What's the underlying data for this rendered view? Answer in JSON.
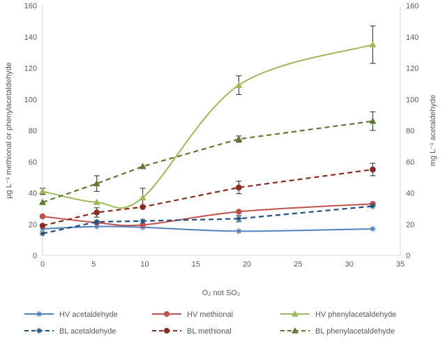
{
  "chart_data": {
    "type": "line",
    "xlabel": "O₂ not SO₂",
    "ylabel_left": "µg L⁻¹ methional or phenylacetaldehyde",
    "ylabel_right": "mg L⁻¹ acetaldehyde",
    "xlim": [
      0,
      35
    ],
    "ylim_left": [
      0,
      160
    ],
    "ylim_right": [
      0,
      160
    ],
    "x_ticks": [
      "0",
      "5",
      "10",
      "15",
      "20",
      "25",
      "30",
      "35"
    ],
    "y_ticks_left": [
      "0",
      "20",
      "40",
      "60",
      "80",
      "100",
      "120",
      "140",
      "160"
    ],
    "y_ticks_right": [
      "0",
      "20",
      "40",
      "60",
      "80",
      "100",
      "120",
      "140",
      "160"
    ],
    "grid": false,
    "legend_position": "bottom",
    "series": [
      {
        "name": "HV acetaldehyde",
        "color": "#4F81BD",
        "dash": false,
        "marker": "asterisk",
        "x": [
          0,
          5.3,
          9.8,
          19.2,
          32.3
        ],
        "y": [
          17,
          18.5,
          18,
          15.5,
          17
        ],
        "err": [
          0,
          0,
          0,
          0,
          0
        ]
      },
      {
        "name": "HV methional",
        "color": "#C0504D",
        "dash": false,
        "marker": "circle",
        "x": [
          0,
          5.3,
          9.8,
          19.2,
          32.3
        ],
        "y": [
          25,
          21,
          19.5,
          28,
          33
        ],
        "err": [
          0,
          0,
          0,
          0,
          0
        ]
      },
      {
        "name": "HV phenylacetaldehyde",
        "color": "#9BBB59",
        "dash": false,
        "marker": "triangle",
        "x": [
          0,
          5.3,
          9.8,
          19.2,
          32.3
        ],
        "y": [
          41,
          34,
          37,
          109,
          135
        ],
        "err": [
          2,
          0,
          6,
          6,
          12
        ]
      },
      {
        "name": "BL acetaldehyde",
        "color": "#1F4E79",
        "dash": true,
        "marker": "asterisk",
        "x": [
          0,
          5.3,
          9.8,
          19.2,
          32.3
        ],
        "y": [
          14,
          21.5,
          22,
          23.5,
          31.5
        ],
        "err": [
          0,
          0,
          0,
          2,
          0
        ]
      },
      {
        "name": "BL methional",
        "color": "#8B2A22",
        "dash": true,
        "marker": "circle",
        "x": [
          0,
          5.3,
          9.8,
          19.2,
          32.3
        ],
        "y": [
          19,
          27.5,
          31,
          43.5,
          55
        ],
        "err": [
          0,
          3,
          0,
          4,
          4
        ]
      },
      {
        "name": "BL phenylacetaldehyde",
        "color": "#5E7A31",
        "dash": true,
        "marker": "triangle",
        "x": [
          0,
          5.3,
          9.8,
          19.2,
          32.3
        ],
        "y": [
          34,
          46,
          57,
          74.5,
          86
        ],
        "err": [
          0,
          5,
          0,
          2,
          6
        ]
      }
    ]
  }
}
